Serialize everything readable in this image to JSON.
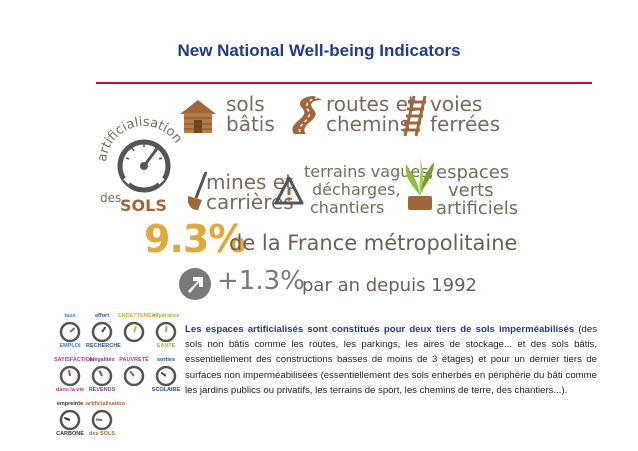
{
  "header": {
    "title": "New National Well-being Indicators"
  },
  "infographic": {
    "gauge_title_top": "artificialisation",
    "gauge_title_bottom_des": "des",
    "gauge_title_bottom_sols": "SOLS",
    "items": [
      {
        "line1": "sols",
        "line2": "bâtis",
        "icon": "house-icon"
      },
      {
        "line1": "routes et",
        "line2": "chemins",
        "icon": "road-icon"
      },
      {
        "line1": "voies",
        "line2": "ferrées",
        "icon": "railway-icon"
      },
      {
        "line1": "mines et",
        "line2": "carrières",
        "icon": "shovel-icon"
      },
      {
        "line1": "terrains vagues,",
        "line2": "décharges,",
        "line3": "chantiers",
        "icon": "warning-icon"
      },
      {
        "line1": "espaces",
        "line2": "verts",
        "line3": "artificiels",
        "icon": "plant-icon"
      }
    ],
    "percent": "9.3%",
    "percent_text": "de la France métropolitaine",
    "growth_value": "+1.3%",
    "growth_text": "par an depuis 1992",
    "colors": {
      "brown": "#a0683a",
      "gold": "#e0a93a",
      "green": "#8cbf3f",
      "grey": "#7a7a7a"
    }
  },
  "gauges": [
    {
      "top": "taux",
      "bottom": "EMPLOI",
      "color": "#3a7fc4"
    },
    {
      "top": "effort",
      "bottom": "RECHERCHE",
      "color": "#2a4f9f"
    },
    {
      "top": "ENDETTEMENT",
      "bottom": "",
      "color": "#e0a93a"
    },
    {
      "top": "espérance",
      "bottom": "SANTÉ",
      "color": "#8cbf3f"
    },
    {
      "top": "SATISFACTION",
      "bottom": "dans la vie",
      "color": "#c0398a"
    },
    {
      "top": "inégalités",
      "bottom": "REVENUS",
      "color": "#7d3c98"
    },
    {
      "top": "PAUVRETÉ",
      "bottom": "",
      "color": "#c0398a"
    },
    {
      "top": "sorties",
      "bottom": "SCOLAIRE",
      "color": "#2a4f9f"
    },
    {
      "top": "empreinte",
      "bottom": "CARBONE",
      "color": "#333333"
    },
    {
      "top": "artificialisation",
      "bottom": "des SOLS",
      "color": "#a0683a"
    }
  ],
  "body": {
    "lead": "Les espaces artificialisés sont constitués pour deux tiers de sols imperméabilisés",
    "rest": " (des sols non bâtis comme les routes, les parkings, les aires de stockage... et des sols bâtis, essentiellement des constructions basses de moins de 3 étages) et pour un dernier tiers de surfaces non imperméabilisées (essentiellement des sols enherbés en périphérie du bâti comme les jardins publics ou privatifs, les terrains de sport, les chemins de terre, des chantiers...)."
  }
}
